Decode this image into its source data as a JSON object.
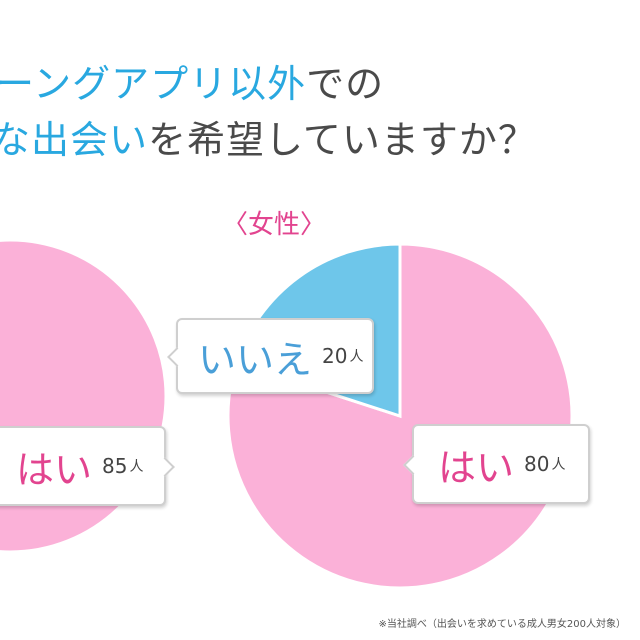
{
  "title": {
    "line1_prefix": "ーングアプリ以外",
    "line1_suffix": "での",
    "line2_prefix": "な出会い",
    "line2_suffix": "を希望していますか？"
  },
  "panels": {
    "female_label": "〈女性〉"
  },
  "labels": {
    "male_yes": {
      "word": "はい",
      "count": "85",
      "unit": "人"
    },
    "female_yes": {
      "word": "はい",
      "count": "80",
      "unit": "人"
    },
    "female_no": {
      "word": "いいえ",
      "count": "20",
      "unit": "人"
    }
  },
  "footnote": "※当社調べ（出会いを求めている成人男女200人対象）",
  "colors": {
    "yes": "#fbb1d8",
    "no": "#6ec6ea",
    "yes_text": "#e2448f",
    "no_text": "#4a9fd8"
  },
  "chart_data": [
    {
      "type": "pie",
      "title": "",
      "categories": [
        "はい"
      ],
      "values": [
        85
      ]
    },
    {
      "type": "pie",
      "title": "〈女性〉",
      "categories": [
        "はい",
        "いいえ"
      ],
      "values": [
        80,
        20
      ]
    }
  ]
}
